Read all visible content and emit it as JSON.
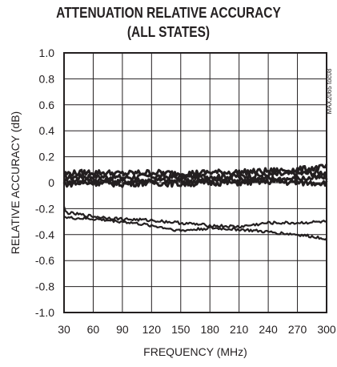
{
  "chart_data": {
    "type": "line",
    "title_line1": "ATTENUATION RELATIVE ACCURACY",
    "title_line2": "(ALL STATES)",
    "xlabel": "FREQUENCY (MHz)",
    "ylabel": "RELATIVE ACCURACY (dB)",
    "figure_code": "MAX2065 toc08",
    "xlim": [
      30,
      300
    ],
    "ylim": [
      -1.0,
      1.0
    ],
    "x_ticks": [
      "30",
      "60",
      "90",
      "120",
      "150",
      "180",
      "210",
      "240",
      "270",
      "300"
    ],
    "y_ticks": [
      "1.0",
      "0.8",
      "0.6",
      "0.4",
      "0.2",
      "0",
      "-0.2",
      "-0.4",
      "-0.6",
      "-0.8",
      "-1.0"
    ],
    "grid": true,
    "series": [
      {
        "values_x": [
          30,
          60,
          90,
          120,
          150,
          180,
          210,
          240,
          270,
          300
        ],
        "values_y": [
          0.04,
          0.05,
          0.04,
          0.05,
          0.04,
          0.05,
          0.05,
          0.06,
          0.07,
          0.08
        ]
      },
      {
        "values_x": [
          30,
          60,
          90,
          120,
          150,
          180,
          210,
          240,
          270,
          300
        ],
        "values_y": [
          0.01,
          0.02,
          0.01,
          0.02,
          0.01,
          0.02,
          0.02,
          0.03,
          0.03,
          0.04
        ]
      },
      {
        "values_x": [
          30,
          60,
          90,
          120,
          150,
          180,
          210,
          240,
          270,
          300
        ],
        "values_y": [
          0.07,
          0.08,
          0.07,
          0.08,
          0.07,
          0.08,
          0.08,
          0.09,
          0.1,
          0.12
        ]
      },
      {
        "values_x": [
          30,
          60,
          90,
          120,
          150,
          180,
          210,
          240,
          270,
          300
        ],
        "values_y": [
          -0.01,
          0.0,
          -0.01,
          0.0,
          -0.01,
          0.0,
          0.0,
          0.01,
          0.0,
          0.0
        ]
      },
      {
        "values_x": [
          30,
          32,
          60,
          90,
          120,
          150,
          180,
          210,
          240,
          270,
          300
        ],
        "values_y": [
          -0.19,
          -0.23,
          -0.26,
          -0.28,
          -0.29,
          -0.31,
          -0.33,
          -0.34,
          -0.31,
          -0.31,
          -0.3
        ]
      },
      {
        "values_x": [
          30,
          32,
          60,
          90,
          120,
          150,
          180,
          210,
          240,
          270,
          300
        ],
        "values_y": [
          -0.25,
          -0.27,
          -0.28,
          -0.3,
          -0.33,
          -0.37,
          -0.35,
          -0.36,
          -0.38,
          -0.4,
          -0.43
        ]
      }
    ]
  }
}
